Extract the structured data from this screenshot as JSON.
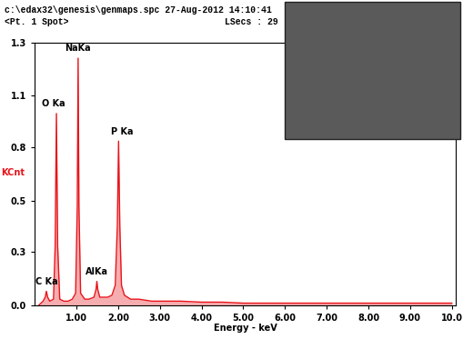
{
  "chart_data": {
    "type": "line",
    "title": "c:\\edax32\\genesis\\genmaps.spc 27-Aug-2012 14:10:41",
    "subtitle": "<Pt. 1 Spot>",
    "header_note": "LSecs : 29",
    "x_label": "Energy - keV",
    "y_label": "KCnt",
    "color": "#e8141a",
    "x": [
      0.1,
      0.2,
      0.25,
      0.28,
      0.31,
      0.36,
      0.45,
      0.49,
      0.52,
      0.55,
      0.6,
      0.7,
      0.8,
      0.9,
      0.98,
      1.02,
      1.04,
      1.06,
      1.1,
      1.2,
      1.3,
      1.42,
      1.47,
      1.49,
      1.51,
      1.56,
      1.65,
      1.75,
      1.85,
      1.93,
      1.98,
      2.01,
      2.04,
      2.08,
      2.15,
      2.3,
      2.5,
      2.8,
      3.0,
      3.5,
      4.0,
      4.5,
      5.0,
      5.5,
      6.0,
      6.5,
      7.0,
      7.5,
      8.0,
      8.5,
      9.0,
      9.5,
      10.0
    ],
    "values": [
      0.0,
      0.02,
      0.04,
      0.07,
      0.04,
      0.02,
      0.03,
      0.3,
      0.97,
      0.3,
      0.03,
      0.02,
      0.02,
      0.03,
      0.06,
      0.5,
      1.25,
      0.5,
      0.06,
      0.03,
      0.03,
      0.04,
      0.08,
      0.12,
      0.08,
      0.04,
      0.04,
      0.04,
      0.05,
      0.1,
      0.4,
      0.83,
      0.4,
      0.1,
      0.05,
      0.03,
      0.03,
      0.02,
      0.02,
      0.02,
      0.015,
      0.015,
      0.01,
      0.01,
      0.01,
      0.01,
      0.01,
      0.01,
      0.01,
      0.01,
      0.01,
      0.01,
      0.01
    ],
    "annotations": [
      {
        "text": "C Ka",
        "x": 0.28,
        "y": 0.07
      },
      {
        "text": "O Ka",
        "x": 0.52,
        "y": 0.97
      },
      {
        "text": "NaKa",
        "x": 1.04,
        "y": 1.25
      },
      {
        "text": "AlKa",
        "x": 1.49,
        "y": 0.12
      },
      {
        "text": "P Ka",
        "x": 2.01,
        "y": 0.83
      }
    ],
    "xlim": [
      0,
      10.1
    ],
    "xticks": [
      {
        "value": 1,
        "label": "1.00"
      },
      {
        "value": 2,
        "label": "2.00"
      },
      {
        "value": 3,
        "label": "3.00"
      },
      {
        "value": 4,
        "label": "4.00"
      },
      {
        "value": 5,
        "label": "5.00"
      },
      {
        "value": 6,
        "label": "6.00"
      },
      {
        "value": 7,
        "label": "7.00"
      },
      {
        "value": 8,
        "label": "8.00"
      },
      {
        "value": 9,
        "label": "9.00"
      },
      {
        "value": 10,
        "label": "10.0"
      }
    ],
    "ylim": [
      0,
      1.33
    ],
    "yticks": [
      {
        "value": 0,
        "label": "0.0"
      },
      {
        "value": 0.27,
        "label": "0.3"
      },
      {
        "value": 0.53,
        "label": "0.5"
      },
      {
        "value": 0.8,
        "label": "0.8"
      },
      {
        "value": 1.06,
        "label": "1.1"
      },
      {
        "value": 1.33,
        "label": "1.3"
      }
    ],
    "grid": false
  }
}
